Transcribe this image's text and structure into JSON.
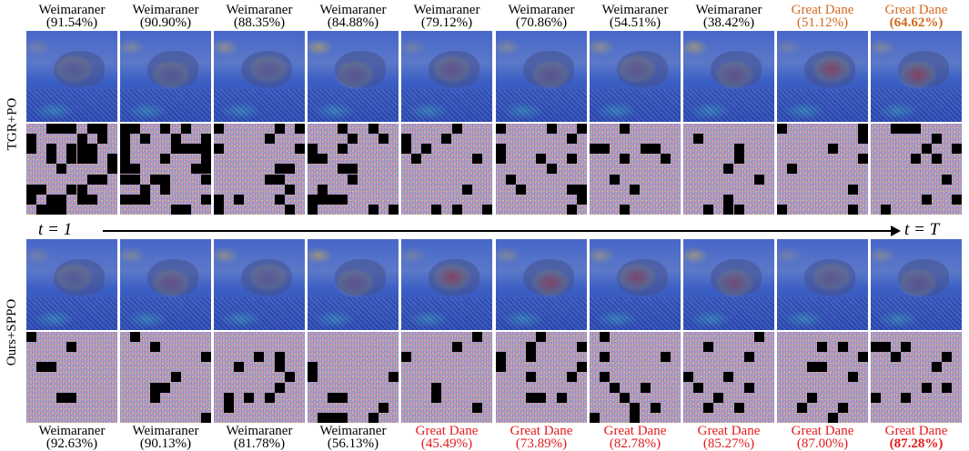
{
  "top_labels": [
    {
      "cls": "Weimaraner",
      "pct": "(91.54%)",
      "color": "black"
    },
    {
      "cls": "Weimaraner",
      "pct": "(90.90%)",
      "color": "black"
    },
    {
      "cls": "Weimaraner",
      "pct": "(88.35%)",
      "color": "black"
    },
    {
      "cls": "Weimaraner",
      "pct": "(84.88%)",
      "color": "black"
    },
    {
      "cls": "Weimaraner",
      "pct": "(79.12%)",
      "color": "black"
    },
    {
      "cls": "Weimaraner",
      "pct": "(70.86%)",
      "color": "black"
    },
    {
      "cls": "Weimaraner",
      "pct": "(54.51%)",
      "color": "black"
    },
    {
      "cls": "Weimaraner",
      "pct": "(38.42%)",
      "color": "black"
    },
    {
      "cls": "Great Dane",
      "pct": "(51.12%)",
      "color": "orange"
    },
    {
      "cls": "Great Dane",
      "pct": "(64.62%)",
      "color": "orange",
      "bold": true
    }
  ],
  "bottom_labels": [
    {
      "cls": "Weimaraner",
      "pct": "(92.63%)",
      "color": "black"
    },
    {
      "cls": "Weimaraner",
      "pct": "(90.13%)",
      "color": "black"
    },
    {
      "cls": "Weimaraner",
      "pct": "(81.78%)",
      "color": "black"
    },
    {
      "cls": "Weimaraner",
      "pct": "(56.13%)",
      "color": "black"
    },
    {
      "cls": "Great Dane",
      "pct": "(45.49%)",
      "color": "red"
    },
    {
      "cls": "Great Dane",
      "pct": "(73.89%)",
      "color": "red"
    },
    {
      "cls": "Great Dane",
      "pct": "(82.78%)",
      "color": "red"
    },
    {
      "cls": "Great Dane",
      "pct": "(85.27%)",
      "color": "red"
    },
    {
      "cls": "Great Dane",
      "pct": "(87.00%)",
      "color": "red"
    },
    {
      "cls": "Great Dane",
      "pct": "(87.28%)",
      "color": "red",
      "bold": true
    }
  ],
  "side_labels": {
    "top": "TGR+PO",
    "bottom": "Ours+SPPO"
  },
  "time_axis": {
    "start": "t = 1",
    "end": "t = T"
  },
  "colors": {
    "orange": "#d2691e",
    "red": "#e41a1c",
    "black": "#000000"
  },
  "heat_intensity_top": [
    0.15,
    0.2,
    0.2,
    0.25,
    0.35,
    0.3,
    0.3,
    0.35,
    0.8,
    0.85
  ],
  "heat_intensity_bottom": [
    0.15,
    0.4,
    0.2,
    0.3,
    0.85,
    0.8,
    0.7,
    0.6,
    0.25,
    0.3
  ],
  "black_patch_density_top": [
    0.45,
    0.35,
    0.2,
    0.18,
    0.15,
    0.14,
    0.14,
    0.12,
    0.12,
    0.1
  ],
  "black_patch_density_bottom": [
    0.1,
    0.08,
    0.12,
    0.1,
    0.1,
    0.1,
    0.1,
    0.1,
    0.1,
    0.12
  ]
}
